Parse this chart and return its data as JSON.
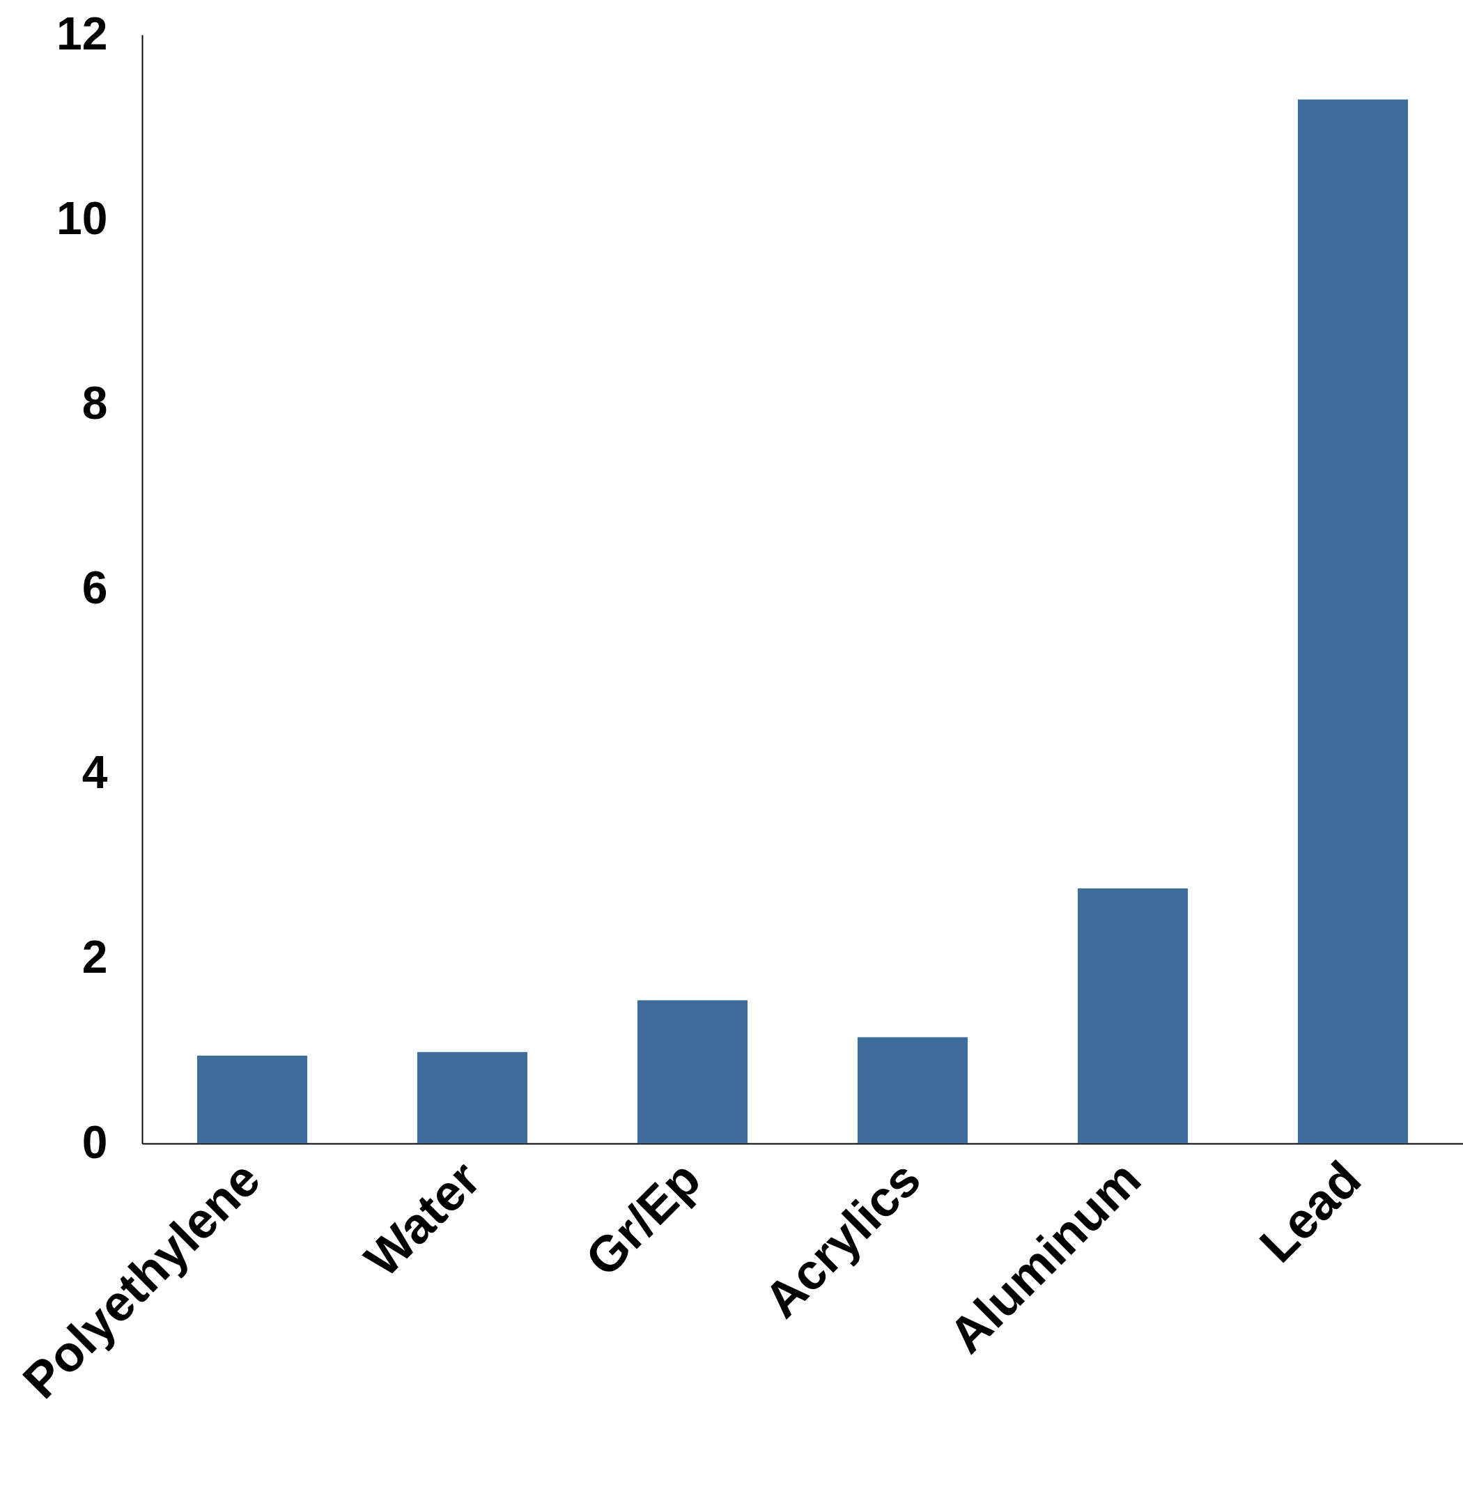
{
  "chart_data": {
    "type": "bar",
    "categories": [
      "Polyethylene",
      "Water",
      "Gr/Ep",
      "Acrylics",
      "Aluminum",
      "Lead"
    ],
    "values": [
      0.95,
      0.99,
      1.55,
      1.15,
      2.76,
      11.3
    ],
    "color": "#3d6b9c",
    "ylim": [
      0,
      12
    ],
    "yticks": [
      0,
      2,
      4,
      6,
      8,
      10,
      12
    ],
    "grid": false
  }
}
